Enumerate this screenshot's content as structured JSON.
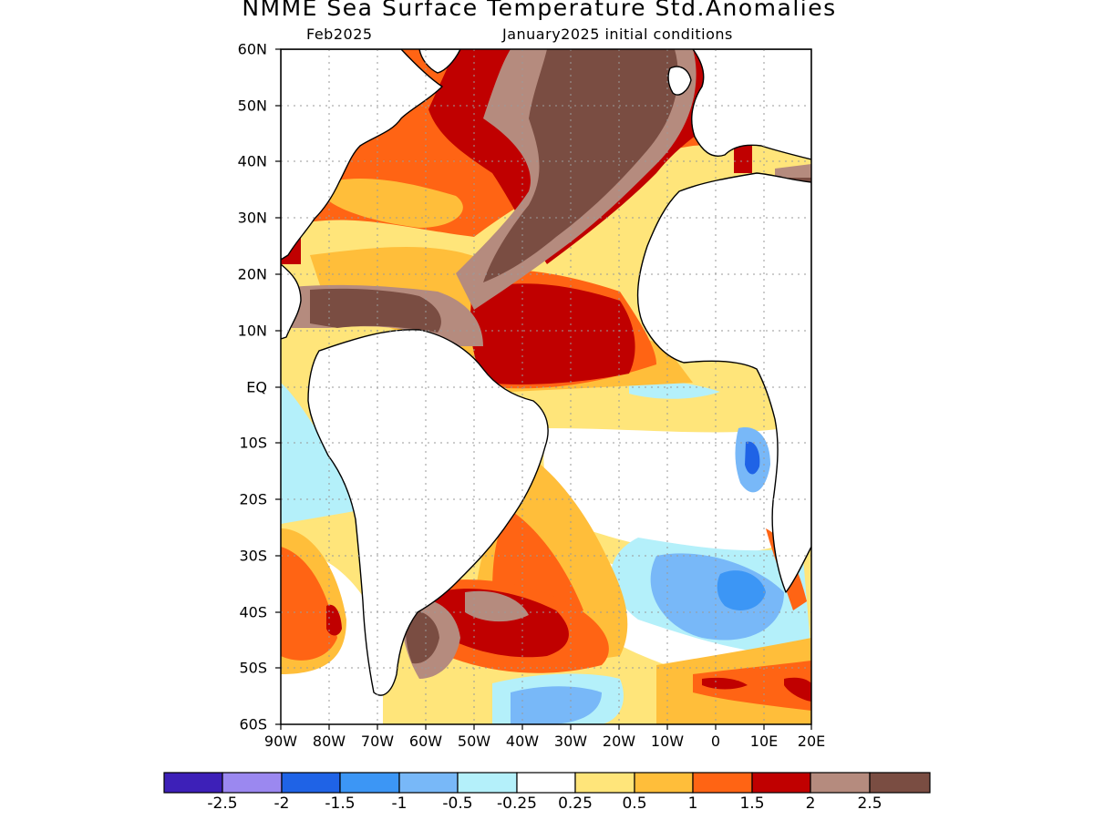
{
  "title": "NMME Sea Surface Temperature Std.Anomalies",
  "subtitle_left": "Feb2025",
  "subtitle_right": "January2025 initial conditions",
  "map": {
    "lon_range": [
      -90,
      20
    ],
    "lat_range": [
      -60,
      60
    ],
    "lat_ticks": [
      "60N",
      "50N",
      "40N",
      "30N",
      "20N",
      "10N",
      "EQ",
      "10S",
      "20S",
      "30S",
      "40S",
      "50S",
      "60S"
    ],
    "lon_ticks": [
      "90W",
      "80W",
      "70W",
      "60W",
      "50W",
      "40W",
      "30W",
      "20W",
      "10W",
      "0",
      "10E",
      "20E"
    ],
    "grid": "dotted every 10 degrees"
  },
  "colorbar": {
    "colors": [
      "#3d20b8",
      "#9b88f0",
      "#1f63e6",
      "#3c96f5",
      "#78b8f8",
      "#b4f0fa",
      "#ffffff",
      "#ffe57a",
      "#ffbe3a",
      "#ff6414",
      "#c00000",
      "#b58b7e",
      "#7a4d42"
    ],
    "labels": [
      "-2.5",
      "-2",
      "-1.5",
      "-1",
      "-0.5",
      "-0.25",
      "0.25",
      "0.5",
      "1",
      "1.5",
      "2",
      "2.5"
    ]
  }
}
